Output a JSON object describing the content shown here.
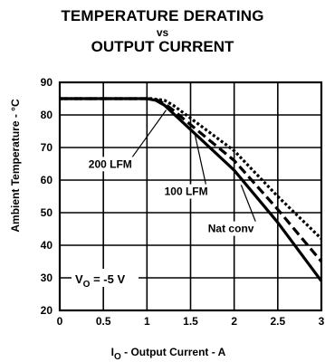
{
  "chart_data": {
    "type": "line",
    "title_lines": [
      "TEMPERATURE DERATING",
      "vs",
      "OUTPUT CURRENT"
    ],
    "xlabel_main": "I",
    "xlabel_sub": "O",
    "xlabel_rest": " - Output Current - A",
    "ylabel": "Ambient Temperature - °C",
    "xlim": [
      0,
      3
    ],
    "ylim": [
      20,
      90
    ],
    "xticks": [
      "0",
      "0.5",
      "1",
      "1.5",
      "2",
      "2.5",
      "3"
    ],
    "yticks": [
      "20",
      "30",
      "40",
      "50",
      "60",
      "70",
      "80",
      "90"
    ],
    "annotation": {
      "main": "V",
      "sub": "O",
      "rest": " = -5 V"
    },
    "series": [
      {
        "name": "Nat conv",
        "style": "solid",
        "points": [
          [
            0,
            85
          ],
          [
            1,
            85
          ],
          [
            1.1,
            84.5
          ],
          [
            1.2,
            83
          ],
          [
            1.3,
            80.5
          ],
          [
            1.5,
            75.5
          ],
          [
            2,
            63
          ],
          [
            2.5,
            47
          ],
          [
            3,
            29
          ]
        ]
      },
      {
        "name": "100 LFM",
        "style": "dashed",
        "points": [
          [
            0,
            85
          ],
          [
            1,
            85
          ],
          [
            1.1,
            84.8
          ],
          [
            1.2,
            83.5
          ],
          [
            1.3,
            81.5
          ],
          [
            1.5,
            77
          ],
          [
            2,
            66
          ],
          [
            2.5,
            51
          ],
          [
            3,
            35
          ]
        ]
      },
      {
        "name": "200 LFM",
        "style": "dotted",
        "points": [
          [
            0,
            85
          ],
          [
            1.05,
            85
          ],
          [
            1.2,
            84.5
          ],
          [
            1.3,
            83
          ],
          [
            1.5,
            79
          ],
          [
            2,
            69
          ],
          [
            2.5,
            55
          ],
          [
            3,
            42
          ]
        ]
      }
    ],
    "labels": [
      {
        "series": "200 LFM",
        "text": "200 LFM",
        "label_at": [
          0.33,
          63.8
        ],
        "pointer_to": [
          1.22,
          81.5
        ]
      },
      {
        "series": "100 LFM",
        "text": "100 LFM",
        "label_at": [
          1.2,
          55.4
        ],
        "pointer_to": [
          1.55,
          74
        ]
      },
      {
        "series": "Nat conv",
        "text": "Nat conv",
        "label_at": [
          1.7,
          44
        ],
        "pointer_to": [
          2.08,
          58.5
        ]
      }
    ]
  }
}
